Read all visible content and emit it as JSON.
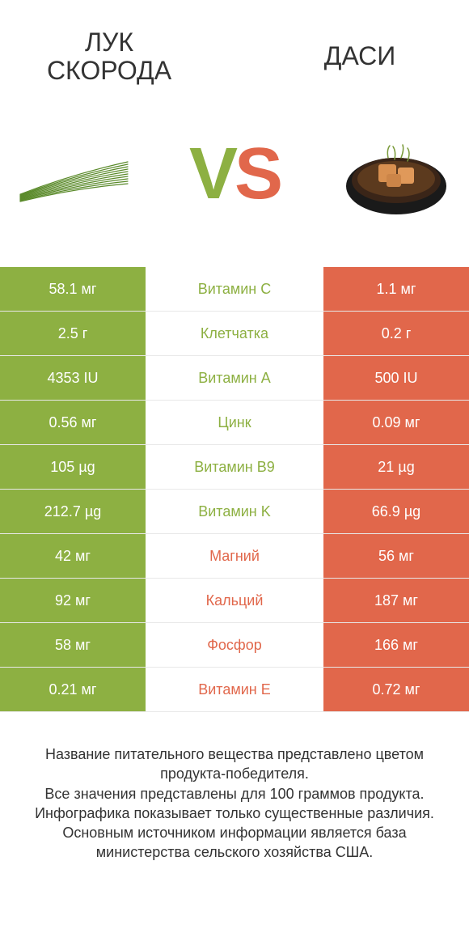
{
  "colors": {
    "left": "#8db042",
    "right": "#e1674b",
    "text": "#333333",
    "row_border": "#e8e8e8",
    "bg": "#ffffff"
  },
  "header": {
    "left_title": "ЛУК СКОРОДА",
    "right_title": "ДАСИ",
    "vs_v": "V",
    "vs_s": "S"
  },
  "table": {
    "rows": [
      {
        "left": "58.1 мг",
        "name": "Витамин C",
        "right": "1.1 мг",
        "winner": "left"
      },
      {
        "left": "2.5 г",
        "name": "Клетчатка",
        "right": "0.2 г",
        "winner": "left"
      },
      {
        "left": "4353 IU",
        "name": "Витамин A",
        "right": "500 IU",
        "winner": "left"
      },
      {
        "left": "0.56 мг",
        "name": "Цинк",
        "right": "0.09 мг",
        "winner": "left"
      },
      {
        "left": "105 µg",
        "name": "Витамин B9",
        "right": "21 µg",
        "winner": "left"
      },
      {
        "left": "212.7 µg",
        "name": "Витамин K",
        "right": "66.9 µg",
        "winner": "left"
      },
      {
        "left": "42 мг",
        "name": "Магний",
        "right": "56 мг",
        "winner": "right"
      },
      {
        "left": "92 мг",
        "name": "Кальций",
        "right": "187 мг",
        "winner": "right"
      },
      {
        "left": "58 мг",
        "name": "Фосфор",
        "right": "166 мг",
        "winner": "right"
      },
      {
        "left": "0.21 мг",
        "name": "Витамин E",
        "right": "0.72 мг",
        "winner": "right"
      }
    ]
  },
  "footnote": {
    "line1": "Название питательного вещества представлено цветом продукта-победителя.",
    "line2": "Все значения представлены для 100 граммов продукта.",
    "line3": "Инфографика показывает только существенные различия.",
    "line4": "Основным источником информации является база министерства сельского хозяйства США."
  }
}
